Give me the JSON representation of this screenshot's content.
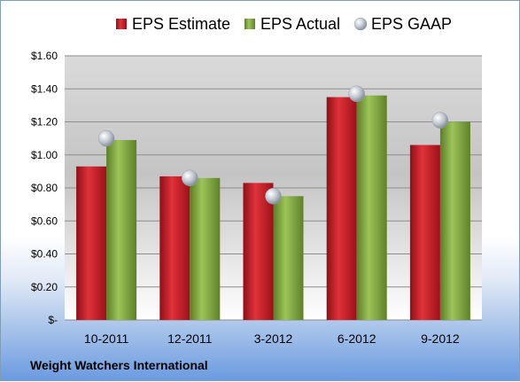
{
  "chart_data": {
    "type": "bar",
    "categories": [
      "10-2011",
      "12-2011",
      "3-2012",
      "6-2012",
      "9-2012"
    ],
    "series": [
      {
        "name": "EPS Estimate",
        "type": "bar",
        "color": "#c9202a",
        "values": [
          0.93,
          0.87,
          0.83,
          1.35,
          1.06
        ]
      },
      {
        "name": "EPS Actual",
        "type": "bar",
        "color": "#7fa33c",
        "values": [
          1.09,
          0.86,
          0.75,
          1.36,
          1.2
        ]
      },
      {
        "name": "EPS GAAP",
        "type": "marker",
        "color": "#b4bcc6",
        "values": [
          1.1,
          0.86,
          0.75,
          1.37,
          1.21
        ]
      }
    ],
    "ylim": [
      0,
      1.6
    ],
    "y_ticks": [
      {
        "value": 0,
        "label": "$-"
      },
      {
        "value": 0.2,
        "label": "$0.20"
      },
      {
        "value": 0.4,
        "label": "$0.40"
      },
      {
        "value": 0.6,
        "label": "$0.60"
      },
      {
        "value": 0.8,
        "label": "$0.80"
      },
      {
        "value": 1.0,
        "label": "$1.00"
      },
      {
        "value": 1.2,
        "label": "$1.20"
      },
      {
        "value": 1.4,
        "label": "$1.40"
      },
      {
        "value": 1.6,
        "label": "$1.60"
      }
    ],
    "grid": true,
    "legend_position": "top"
  },
  "company": "Weight Watchers International"
}
